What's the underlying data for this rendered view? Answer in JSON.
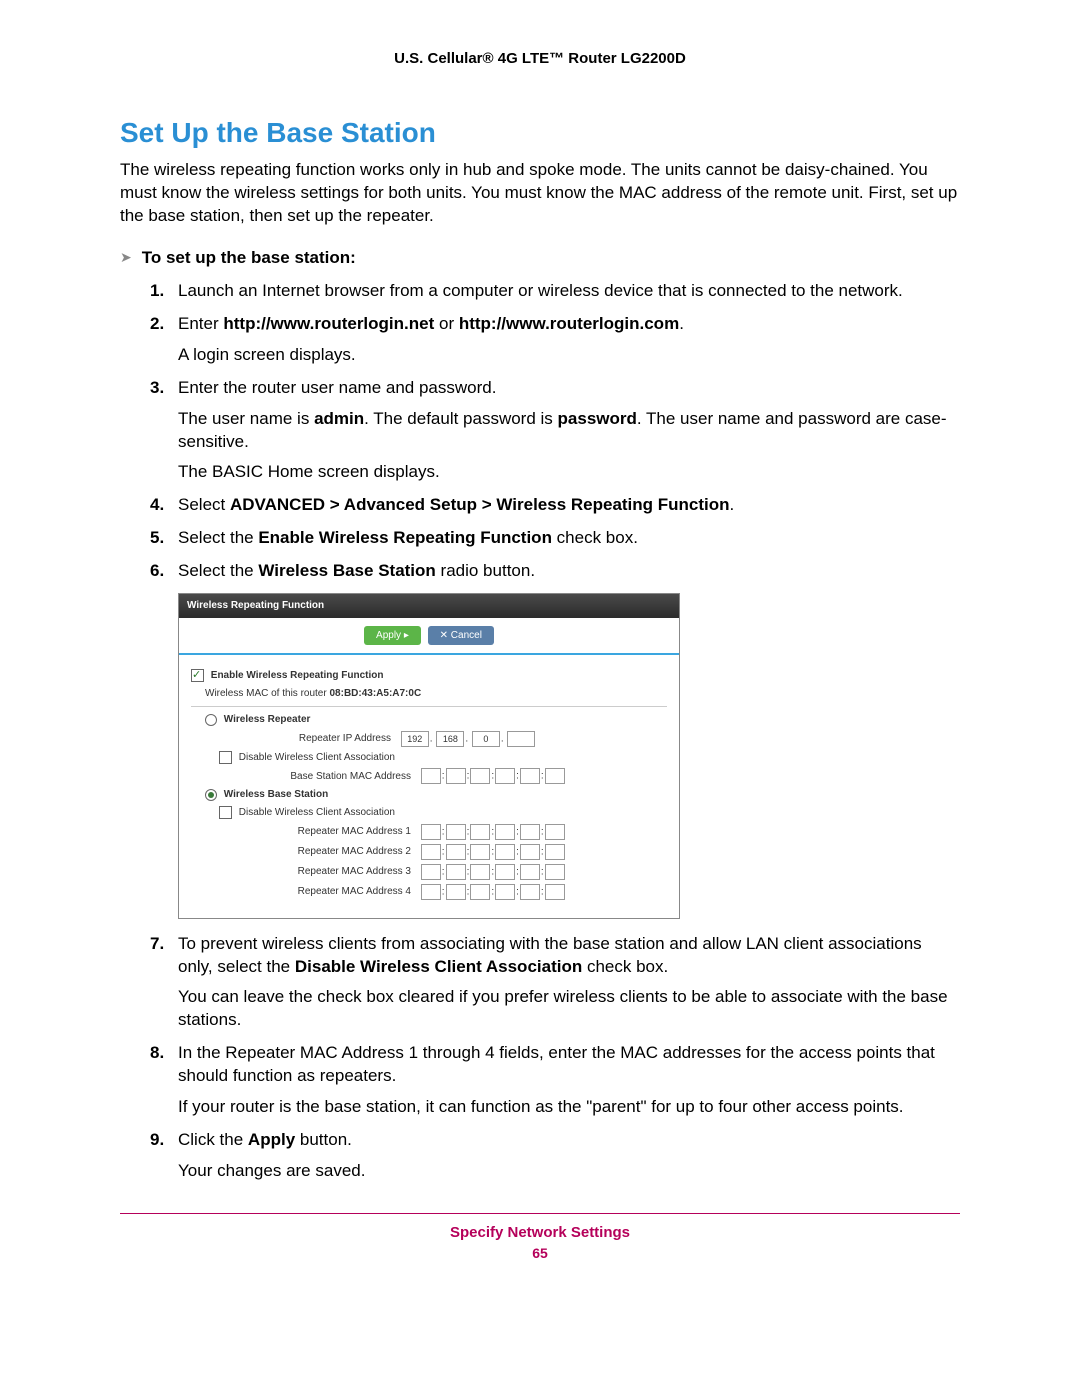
{
  "header": {
    "title": "U.S. Cellular® 4G LTE™ Router LG2200D"
  },
  "section": {
    "title": "Set Up the Base Station",
    "intro": "The wireless repeating function works only in hub and spoke mode. The units cannot be daisy-chained. You must know the wireless settings for both units. You must know the MAC address of the remote unit. First, set up the base station, then set up the repeater.",
    "task_heading": "To set up the base station:"
  },
  "steps": {
    "s1": "Launch an Internet browser from a computer or wireless device that is connected to the network.",
    "s2_pre": "Enter ",
    "s2_bold1": "http://www.routerlogin.net",
    "s2_mid": " or ",
    "s2_bold2": "http://www.routerlogin.com",
    "s2_post": ".",
    "s2_sub": "A login screen displays.",
    "s3": "Enter the router user name and password.",
    "s3_sub1_pre": "The user name is ",
    "s3_sub1_b1": "admin",
    "s3_sub1_mid": ". The default password is ",
    "s3_sub1_b2": "password",
    "s3_sub1_post": ". The user name and password are case-sensitive.",
    "s3_sub2": "The BASIC Home screen displays.",
    "s4_pre": "Select ",
    "s4_bold": "ADVANCED > Advanced Setup > Wireless Repeating Function",
    "s4_post": ".",
    "s5_pre": "Select the ",
    "s5_bold": "Enable Wireless Repeating Function",
    "s5_post": " check box.",
    "s6_pre": "Select the ",
    "s6_bold": "Wireless Base Station",
    "s6_post": " radio button.",
    "s7_pre": "To prevent wireless clients from associating with the base station and allow LAN client associations only, select the ",
    "s7_bold": "Disable Wireless Client Association",
    "s7_post": " check box.",
    "s7_sub": "You can leave the check box cleared if you prefer wireless clients to be able to associate with the base stations.",
    "s8": "In the Repeater MAC Address 1 through 4 fields, enter the MAC addresses for the access points that should function as repeaters.",
    "s8_sub": "If your router is the base station, it can function as the \"parent\" for up to four other access points.",
    "s9_pre": "Click the ",
    "s9_bold": "Apply",
    "s9_post": " button.",
    "s9_sub": "Your changes are saved."
  },
  "panel": {
    "title": "Wireless Repeating Function",
    "apply_label": "Apply ▸",
    "cancel_label": "✕ Cancel",
    "enable_label": "Enable Wireless Repeating Function",
    "mac_line_pre": "Wireless MAC of this router ",
    "mac_value": "08:BD:43:A5:A7:0C",
    "repeater_label": "Wireless Repeater",
    "repeater_ip_label": "Repeater IP Address",
    "ip": {
      "a": "192",
      "b": "168",
      "c": "0",
      "d": ""
    },
    "disable_assoc_label": "Disable Wireless Client Association",
    "base_mac_label": "Base Station MAC Address",
    "base_station_label": "Wireless Base Station",
    "rmac1_label": "Repeater MAC Address 1",
    "rmac2_label": "Repeater MAC Address 2",
    "rmac3_label": "Repeater MAC Address 3",
    "rmac4_label": "Repeater MAC Address 4"
  },
  "footer": {
    "title": "Specify Network Settings",
    "page": "65"
  },
  "colors": {
    "heading_blue": "#2a8fd4",
    "footer_magenta": "#b5005a",
    "apply_green": "#5cb548",
    "cancel_blue": "#5a7fa8",
    "toolbar_underline": "#3aa6e0"
  }
}
